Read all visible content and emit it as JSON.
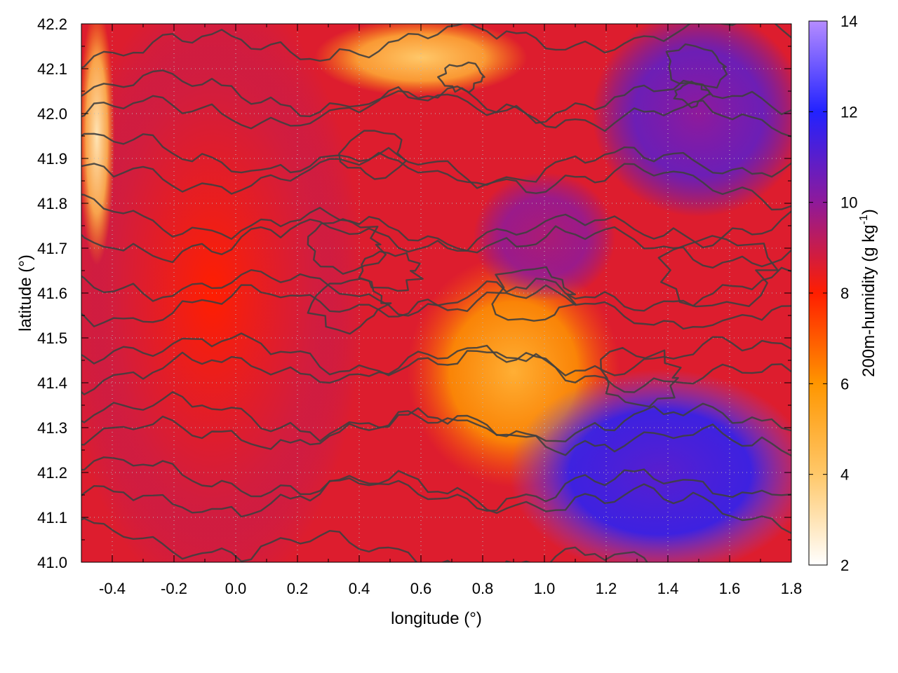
{
  "chart_data": {
    "type": "heatmap",
    "title": "",
    "xlabel": "longitude (°)",
    "ylabel": "latitude (°)",
    "colorbar_label": "200m-humidity (g kg-1)",
    "colorbar_label_parts": {
      "main": "200m-humidity (g kg",
      "superscript": "-1",
      "close": ")"
    },
    "xlim": [
      -0.5,
      1.8
    ],
    "ylim": [
      41.0,
      42.2
    ],
    "clim": [
      2,
      14
    ],
    "x_ticks": [
      "-0.4",
      "-0.2",
      "0.0",
      "0.2",
      "0.4",
      "0.6",
      "0.8",
      "1.0",
      "1.2",
      "1.4",
      "1.6",
      "1.8"
    ],
    "x_tick_values": [
      -0.4,
      -0.2,
      0.0,
      0.2,
      0.4,
      0.6,
      0.8,
      1.0,
      1.2,
      1.4,
      1.6,
      1.8
    ],
    "y_ticks": [
      "41.0",
      "41.1",
      "41.2",
      "41.3",
      "41.4",
      "41.5",
      "41.6",
      "41.7",
      "41.8",
      "41.9",
      "42.0",
      "42.1",
      "42.2"
    ],
    "y_tick_values": [
      41.0,
      41.1,
      41.2,
      41.3,
      41.4,
      41.5,
      41.6,
      41.7,
      41.8,
      41.9,
      42.0,
      42.1,
      42.2
    ],
    "colorbar_ticks": [
      "2",
      "4",
      "6",
      "8",
      "10",
      "12",
      "14"
    ],
    "colorbar_tick_values": [
      2,
      4,
      6,
      8,
      10,
      12,
      14
    ],
    "colormap": [
      {
        "value": 2,
        "color": "#ffffff"
      },
      {
        "value": 4,
        "color": "#ffc86a"
      },
      {
        "value": 6,
        "color": "#ff9600"
      },
      {
        "value": 8,
        "color": "#ff1e00"
      },
      {
        "value": 10,
        "color": "#8f1a9a"
      },
      {
        "value": 12,
        "color": "#2222ff"
      },
      {
        "value": 14,
        "color": "#b58cff"
      }
    ],
    "grid": true,
    "contours": true,
    "field_regions": [
      {
        "area": "west",
        "lon": [
          -0.5,
          0.35
        ],
        "lat": [
          41.0,
          42.2
        ],
        "humidity_range": [
          8,
          9.5
        ]
      },
      {
        "area": "northwest-corner",
        "lon": [
          -0.5,
          -0.4
        ],
        "lat": [
          41.7,
          42.2
        ],
        "humidity_range": [
          3,
          6
        ]
      },
      {
        "area": "central-south",
        "lon": [
          0.6,
          1.2
        ],
        "lat": [
          41.2,
          41.65
        ],
        "humidity_range": [
          5,
          7
        ]
      },
      {
        "area": "north-central",
        "lon": [
          0.8,
          1.2
        ],
        "lat": [
          41.6,
          41.85
        ],
        "humidity_range": [
          9.5,
          10.5
        ]
      },
      {
        "area": "northeast",
        "lon": [
          1.2,
          1.8
        ],
        "lat": [
          41.8,
          42.2
        ],
        "humidity_range": [
          10,
          12
        ]
      },
      {
        "area": "southeast-sea",
        "lon": [
          0.95,
          1.8
        ],
        "lat": [
          41.0,
          41.4
        ],
        "humidity_range": [
          11,
          13
        ]
      },
      {
        "area": "north-pockets",
        "lon": [
          0.3,
          0.9
        ],
        "lat": [
          42.05,
          42.2
        ],
        "humidity_range": [
          4,
          6
        ]
      }
    ]
  }
}
